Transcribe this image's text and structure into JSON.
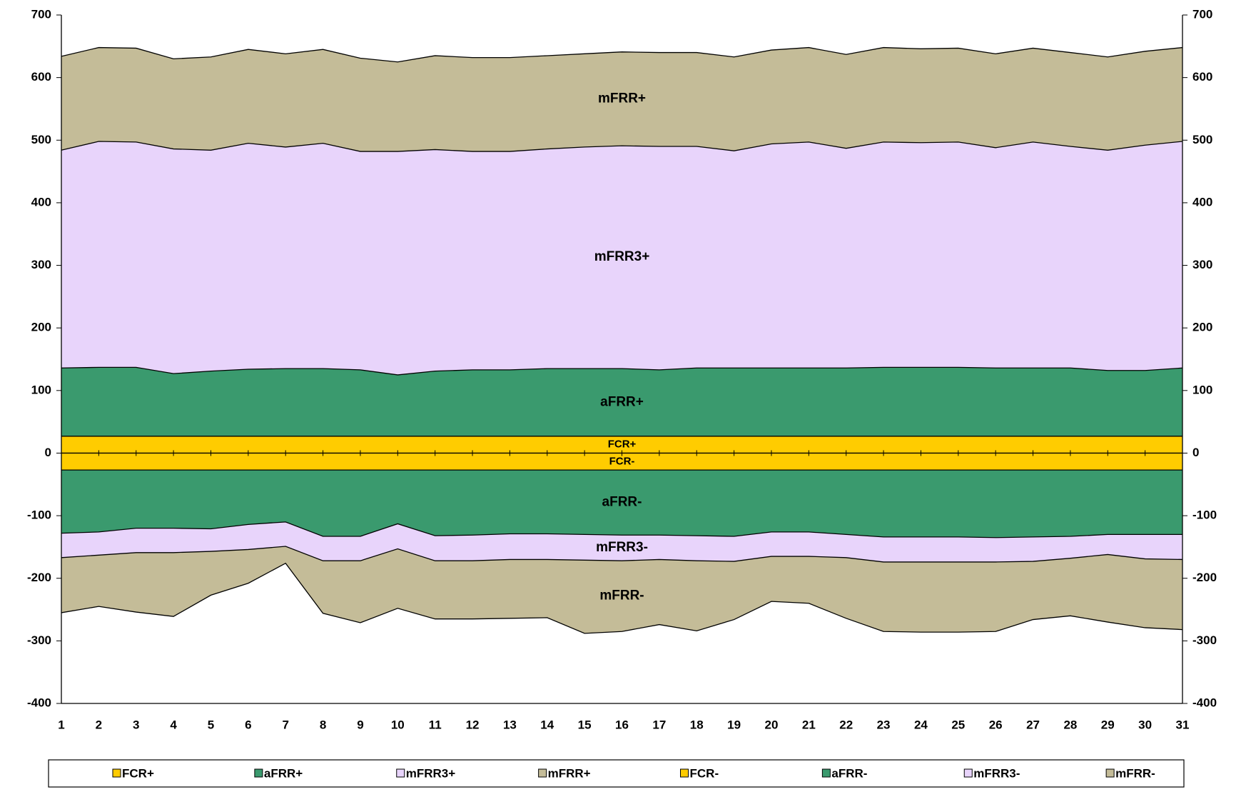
{
  "chart_data": {
    "type": "stacked-area",
    "categories": [
      "1",
      "2",
      "3",
      "4",
      "5",
      "6",
      "7",
      "8",
      "9",
      "10",
      "11",
      "12",
      "13",
      "14",
      "15",
      "16",
      "17",
      "18",
      "19",
      "20",
      "21",
      "22",
      "23",
      "24",
      "25",
      "26",
      "27",
      "28",
      "29",
      "30",
      "31"
    ],
    "series": [
      {
        "name": "FCR+",
        "color": "#ffcc00",
        "values": [
          27,
          27,
          27,
          27,
          27,
          27,
          27,
          27,
          27,
          27,
          27,
          27,
          27,
          27,
          27,
          27,
          27,
          27,
          27,
          27,
          27,
          27,
          27,
          27,
          27,
          27,
          27,
          27,
          27,
          27,
          27
        ]
      },
      {
        "name": "aFRR+",
        "color": "#3a9a6e",
        "values": [
          109,
          110,
          110,
          100,
          104,
          107,
          108,
          108,
          106,
          98,
          104,
          106,
          106,
          108,
          108,
          108,
          106,
          109,
          109,
          109,
          109,
          109,
          110,
          110,
          110,
          109,
          109,
          109,
          105,
          105,
          109
        ]
      },
      {
        "name": "mFRR3+",
        "color": "#e8d4fb",
        "values": [
          348,
          361,
          360,
          359,
          353,
          361,
          354,
          360,
          349,
          357,
          354,
          349,
          349,
          351,
          354,
          356,
          357,
          354,
          347,
          358,
          361,
          351,
          360,
          359,
          360,
          352,
          361,
          354,
          352,
          360,
          362
        ]
      },
      {
        "name": "mFRR+",
        "color": "#c4bc98",
        "values": [
          150,
          150,
          150,
          144,
          149,
          150,
          149,
          150,
          149,
          143,
          150,
          150,
          150,
          149,
          149,
          150,
          150,
          150,
          150,
          150,
          151,
          150,
          151,
          150,
          150,
          150,
          150,
          150,
          149,
          150,
          150
        ]
      },
      {
        "name": "FCR-",
        "color": "#ffcc00",
        "values": [
          -27,
          -27,
          -27,
          -27,
          -27,
          -27,
          -27,
          -27,
          -27,
          -27,
          -27,
          -27,
          -27,
          -27,
          -27,
          -27,
          -27,
          -27,
          -27,
          -27,
          -27,
          -27,
          -27,
          -27,
          -27,
          -27,
          -27,
          -27,
          -27,
          -27,
          -27
        ]
      },
      {
        "name": "aFRR-",
        "color": "#3a9a6e",
        "values": [
          -101,
          -99,
          -93,
          -93,
          -94,
          -87,
          -83,
          -106,
          -106,
          -86,
          -105,
          -104,
          -102,
          -102,
          -103,
          -104,
          -104,
          -105,
          -106,
          -99,
          -99,
          -103,
          -107,
          -107,
          -107,
          -108,
          -107,
          -106,
          -103,
          -103,
          -103
        ]
      },
      {
        "name": "mFRR3-",
        "color": "#e8d4fb",
        "values": [
          -39,
          -37,
          -39,
          -39,
          -36,
          -40,
          -39,
          -39,
          -39,
          -40,
          -40,
          -41,
          -41,
          -41,
          -41,
          -41,
          -39,
          -40,
          -40,
          -39,
          -39,
          -37,
          -40,
          -40,
          -40,
          -39,
          -39,
          -35,
          -32,
          -39,
          -40
        ]
      },
      {
        "name": "mFRR-",
        "color": "#c4bc98",
        "values": [
          -88,
          -82,
          -95,
          -102,
          -70,
          -54,
          -27,
          -84,
          -99,
          -95,
          -93,
          -93,
          -94,
          -93,
          -117,
          -113,
          -104,
          -112,
          -93,
          -72,
          -75,
          -97,
          -111,
          -112,
          -112,
          -111,
          -93,
          -92,
          -108,
          -110,
          -112
        ]
      }
    ],
    "ylim": [
      -400,
      700
    ],
    "yticks": [
      -400,
      -300,
      -200,
      -100,
      0,
      100,
      200,
      300,
      400,
      500,
      600,
      700
    ]
  }
}
